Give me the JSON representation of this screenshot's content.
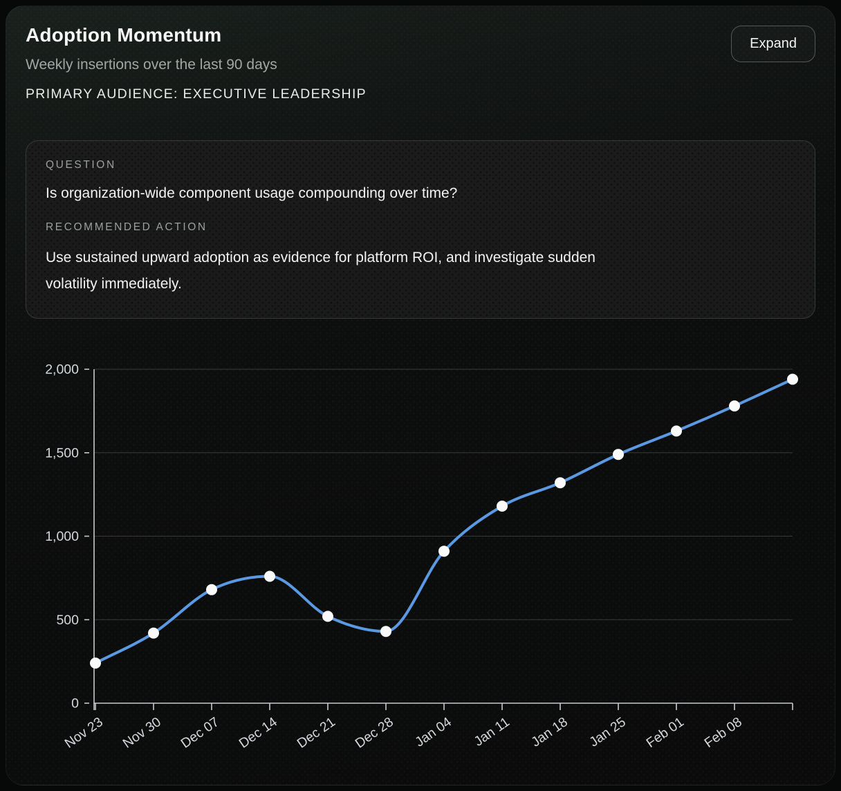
{
  "header": {
    "title": "Adoption Momentum",
    "subtitle": "Weekly insertions over the last 90 days",
    "audience": "PRIMARY AUDIENCE: EXECUTIVE LEADERSHIP",
    "expand_label": "Expand"
  },
  "insight": {
    "question_label": "QUESTION",
    "question": "Is organization-wide component usage compounding over time?",
    "action_label": "RECOMMENDED ACTION",
    "action_lines": [
      "Use sustained upward adoption as evidence for platform ROI, and investigate sudden",
      "volatility immediately."
    ]
  },
  "chart_data": {
    "type": "line",
    "title": "Adoption Momentum",
    "categories": [
      "Nov 23",
      "Nov 30",
      "Dec 07",
      "Dec 14",
      "Dec 21",
      "Dec 28",
      "Jan 04",
      "Jan 11",
      "Jan 18",
      "Jan 25",
      "Feb 01",
      "Feb 08",
      ""
    ],
    "values": [
      240,
      420,
      680,
      760,
      520,
      430,
      910,
      1180,
      1320,
      1490,
      1630,
      1780,
      1940
    ],
    "xlabel": "",
    "ylabel": "",
    "ylim": [
      0,
      2000
    ],
    "yticks": [
      0,
      500,
      1000,
      1500,
      2000
    ],
    "ytick_labels": [
      "0",
      "500",
      "1,000",
      "1,500",
      "2,000"
    ],
    "grid": "horizontal",
    "legend": "none",
    "curve": "monotone",
    "x_label_rotation": -35,
    "colors": {
      "line": "#5B99E3",
      "point": "#FAFAFA",
      "axis": "#C6CBD1",
      "tick_label": "#D4D8DD",
      "grid": "rgba(255,255,255,0.19)"
    }
  }
}
